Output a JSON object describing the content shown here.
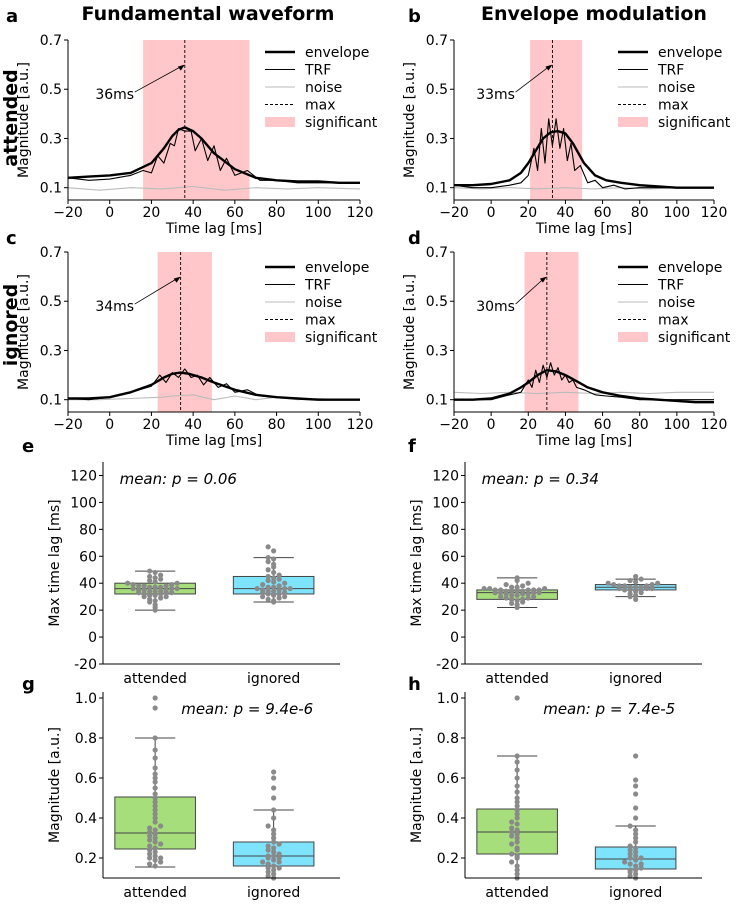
{
  "column_titles": [
    "Fundamental waveform",
    "Envelope modulation"
  ],
  "row_titles": [
    "attended",
    "ignored"
  ],
  "legend_labels": [
    "envelope",
    "TRF",
    "noise",
    "max",
    "significant"
  ],
  "colors": {
    "sig": "#ffc7c9",
    "green": "#a6de7b",
    "cyan": "#7ee3fc",
    "dot": "#8a8a8a",
    "noise": "#bbbbbb",
    "line": "#000000"
  },
  "chart_data": [
    {
      "panel": "a",
      "type": "line",
      "xlabel": "Time lag [ms]",
      "ylabel": "Magnitude [a.u.]",
      "xlim": [
        -20,
        120
      ],
      "ylim": [
        0.05,
        0.7
      ],
      "xticks": [
        -20,
        0,
        20,
        40,
        60,
        80,
        100,
        120
      ],
      "yticks": [
        0.1,
        0.3,
        0.5,
        0.7
      ],
      "peak_ms": 36,
      "peak_label": "36ms",
      "sig_range": [
        16,
        67
      ],
      "series": [
        {
          "name": "envelope",
          "x": [
            -20,
            -10,
            0,
            10,
            20,
            26,
            30,
            33,
            36,
            40,
            44,
            50,
            60,
            70,
            80,
            90,
            100,
            110,
            120
          ],
          "y": [
            0.14,
            0.145,
            0.15,
            0.16,
            0.2,
            0.26,
            0.31,
            0.335,
            0.345,
            0.33,
            0.3,
            0.24,
            0.175,
            0.14,
            0.13,
            0.125,
            0.125,
            0.12,
            0.12
          ]
        },
        {
          "name": "TRF",
          "x": [
            -20,
            -10,
            0,
            10,
            16,
            20,
            23,
            26,
            29,
            31,
            33,
            36,
            39,
            41,
            44,
            47,
            50,
            53,
            56,
            60,
            66,
            72,
            80,
            90,
            100,
            110,
            120
          ],
          "y": [
            0.14,
            0.13,
            0.135,
            0.15,
            0.17,
            0.16,
            0.23,
            0.2,
            0.28,
            0.27,
            0.34,
            0.33,
            0.33,
            0.25,
            0.3,
            0.21,
            0.27,
            0.17,
            0.22,
            0.15,
            0.17,
            0.13,
            0.13,
            0.12,
            0.12,
            0.12,
            0.12
          ]
        },
        {
          "name": "noise",
          "x": [
            -20,
            -5,
            10,
            25,
            40,
            55,
            70,
            85,
            100,
            120
          ],
          "y": [
            0.1,
            0.09,
            0.1,
            0.095,
            0.105,
            0.09,
            0.1,
            0.095,
            0.1,
            0.095
          ]
        }
      ]
    },
    {
      "panel": "b",
      "type": "line",
      "xlabel": "Time lag [ms]",
      "ylabel": "Magnitude [a.u.]",
      "xlim": [
        -20,
        120
      ],
      "ylim": [
        0.05,
        0.7
      ],
      "xticks": [
        -20,
        0,
        20,
        40,
        60,
        80,
        100,
        120
      ],
      "yticks": [
        0.1,
        0.3,
        0.5,
        0.7
      ],
      "peak_ms": 33,
      "peak_label": "33ms",
      "sig_range": [
        21,
        49
      ],
      "series": [
        {
          "name": "envelope",
          "x": [
            -20,
            -10,
            0,
            10,
            16,
            20,
            24,
            28,
            32,
            36,
            40,
            44,
            50,
            56,
            62,
            70,
            80,
            90,
            100,
            110,
            120
          ],
          "y": [
            0.11,
            0.11,
            0.115,
            0.13,
            0.16,
            0.2,
            0.25,
            0.3,
            0.325,
            0.33,
            0.32,
            0.28,
            0.2,
            0.15,
            0.13,
            0.12,
            0.11,
            0.105,
            0.1,
            0.1,
            0.1
          ]
        },
        {
          "name": "TRF",
          "x": [
            -20,
            -10,
            0,
            10,
            16,
            20,
            23,
            25,
            27,
            29,
            31,
            33,
            35,
            37,
            39,
            41,
            43,
            45,
            48,
            52,
            56,
            60,
            66,
            72,
            80,
            90,
            100,
            110,
            120
          ],
          "y": [
            0.11,
            0.1,
            0.1,
            0.11,
            0.12,
            0.15,
            0.26,
            0.17,
            0.34,
            0.2,
            0.38,
            0.27,
            0.38,
            0.26,
            0.34,
            0.21,
            0.28,
            0.17,
            0.19,
            0.12,
            0.13,
            0.1,
            0.11,
            0.095,
            0.1,
            0.1,
            0.1,
            0.1,
            0.1
          ]
        },
        {
          "name": "noise",
          "x": [
            -20,
            -5,
            10,
            25,
            40,
            55,
            70,
            85,
            100,
            120
          ],
          "y": [
            0.1,
            0.095,
            0.1,
            0.095,
            0.1,
            0.095,
            0.1,
            0.095,
            0.1,
            0.1
          ]
        }
      ]
    },
    {
      "panel": "c",
      "type": "line",
      "xlabel": "Time lag [ms]",
      "ylabel": "Magnitude [a.u.]",
      "xlim": [
        -20,
        120
      ],
      "ylim": [
        0.05,
        0.7
      ],
      "xticks": [
        -20,
        0,
        20,
        40,
        60,
        80,
        100,
        120
      ],
      "yticks": [
        0.1,
        0.3,
        0.5,
        0.7
      ],
      "peak_ms": 34,
      "peak_label": "34ms",
      "sig_range": [
        23,
        49
      ],
      "series": [
        {
          "name": "envelope",
          "x": [
            -20,
            -10,
            0,
            10,
            20,
            26,
            30,
            34,
            38,
            44,
            50,
            60,
            70,
            80,
            90,
            100,
            110,
            120
          ],
          "y": [
            0.105,
            0.105,
            0.11,
            0.13,
            0.16,
            0.19,
            0.205,
            0.21,
            0.205,
            0.19,
            0.17,
            0.14,
            0.12,
            0.11,
            0.105,
            0.1,
            0.1,
            0.1
          ]
        },
        {
          "name": "TRF",
          "x": [
            -20,
            -10,
            0,
            10,
            20,
            24,
            27,
            30,
            33,
            36,
            39,
            42,
            45,
            48,
            52,
            56,
            60,
            66,
            72,
            80,
            90,
            100,
            110,
            120
          ],
          "y": [
            0.105,
            0.1,
            0.11,
            0.13,
            0.155,
            0.2,
            0.17,
            0.21,
            0.19,
            0.225,
            0.19,
            0.2,
            0.16,
            0.19,
            0.15,
            0.165,
            0.13,
            0.14,
            0.115,
            0.11,
            0.105,
            0.1,
            0.1,
            0.1
          ]
        },
        {
          "name": "noise",
          "x": [
            -20,
            -5,
            10,
            25,
            30,
            40,
            50,
            60,
            70,
            80,
            90,
            100,
            110,
            120
          ],
          "y": [
            0.1,
            0.1,
            0.105,
            0.11,
            0.115,
            0.12,
            0.1,
            0.115,
            0.1,
            0.11,
            0.1,
            0.105,
            0.1,
            0.1
          ]
        }
      ]
    },
    {
      "panel": "d",
      "type": "line",
      "xlabel": "Time lag [ms]",
      "ylabel": "Magnitude [a.u.]",
      "xlim": [
        -20,
        120
      ],
      "ylim": [
        0.05,
        0.7
      ],
      "xticks": [
        -20,
        0,
        20,
        40,
        60,
        80,
        100,
        120
      ],
      "yticks": [
        0.1,
        0.3,
        0.5,
        0.7
      ],
      "peak_ms": 30,
      "peak_label": "30ms",
      "sig_range": [
        18,
        47
      ],
      "series": [
        {
          "name": "envelope",
          "x": [
            -20,
            -10,
            0,
            10,
            16,
            20,
            25,
            30,
            35,
            40,
            46,
            52,
            60,
            70,
            80,
            90,
            100,
            110,
            120
          ],
          "y": [
            0.1,
            0.1,
            0.105,
            0.125,
            0.15,
            0.17,
            0.2,
            0.22,
            0.215,
            0.2,
            0.175,
            0.15,
            0.13,
            0.115,
            0.105,
            0.1,
            0.095,
            0.09,
            0.09
          ]
        },
        {
          "name": "TRF",
          "x": [
            -20,
            -10,
            0,
            10,
            16,
            20,
            22,
            24,
            26,
            28,
            30,
            32,
            34,
            36,
            38,
            40,
            42,
            44,
            46,
            50,
            56,
            62,
            70,
            80,
            90,
            100,
            110,
            120
          ],
          "y": [
            0.1,
            0.1,
            0.1,
            0.12,
            0.13,
            0.18,
            0.15,
            0.22,
            0.17,
            0.24,
            0.19,
            0.25,
            0.2,
            0.23,
            0.18,
            0.2,
            0.17,
            0.18,
            0.15,
            0.14,
            0.12,
            0.115,
            0.11,
            0.1,
            0.1,
            0.1,
            0.1,
            0.1
          ]
        },
        {
          "name": "noise",
          "x": [
            -20,
            -5,
            10,
            25,
            40,
            55,
            70,
            85,
            100,
            120
          ],
          "y": [
            0.13,
            0.125,
            0.13,
            0.125,
            0.13,
            0.125,
            0.13,
            0.125,
            0.13,
            0.13
          ]
        }
      ]
    },
    {
      "panel": "e",
      "type": "box",
      "ylabel": "Max time lag [ms]",
      "categories": [
        "attended",
        "ignored"
      ],
      "ylim": [
        -20,
        130
      ],
      "yticks": [
        -20,
        0,
        20,
        40,
        60,
        80,
        100,
        120
      ],
      "annotation": "mean:   p = 0.06",
      "boxes": [
        {
          "q1": 32,
          "median": 36,
          "q3": 40,
          "whisker_low": 20,
          "whisker_high": 49,
          "points": [
            20,
            22,
            24,
            26,
            27,
            28,
            29,
            30,
            30,
            31,
            31,
            32,
            32,
            33,
            33,
            33,
            34,
            34,
            34,
            35,
            35,
            35,
            36,
            36,
            36,
            37,
            37,
            37,
            38,
            38,
            38,
            39,
            39,
            40,
            40,
            41,
            42,
            43,
            44,
            45,
            46,
            48,
            49
          ]
        },
        {
          "q1": 32,
          "median": 36,
          "q3": 45,
          "whisker_low": 26,
          "whisker_high": 59,
          "points": [
            26,
            27,
            28,
            29,
            30,
            30,
            31,
            32,
            32,
            33,
            33,
            34,
            34,
            35,
            35,
            36,
            36,
            36,
            37,
            37,
            38,
            39,
            40,
            41,
            42,
            43,
            44,
            45,
            46,
            48,
            50,
            52,
            54,
            56,
            58,
            59,
            64,
            67
          ]
        }
      ]
    },
    {
      "panel": "f",
      "type": "box",
      "ylabel": "Max time lag [ms]",
      "categories": [
        "attended",
        "ignored"
      ],
      "ylim": [
        -20,
        130
      ],
      "yticks": [
        -20,
        0,
        20,
        40,
        60,
        80,
        100,
        120
      ],
      "annotation": "mean:   p = 0.34",
      "boxes": [
        {
          "q1": 28,
          "median": 33,
          "q3": 35,
          "whisker_low": 22,
          "whisker_high": 44,
          "points": [
            22,
            24,
            25,
            26,
            27,
            28,
            28,
            29,
            29,
            30,
            30,
            31,
            31,
            32,
            32,
            32,
            33,
            33,
            33,
            33,
            34,
            34,
            34,
            34,
            35,
            35,
            35,
            35,
            35,
            36,
            36,
            36,
            37,
            37,
            38,
            39,
            40,
            42,
            44
          ]
        },
        {
          "q1": 35,
          "median": 37,
          "q3": 39,
          "whisker_low": 30,
          "whisker_high": 43,
          "points": [
            28,
            30,
            31,
            32,
            33,
            34,
            35,
            35,
            35,
            36,
            36,
            36,
            37,
            37,
            37,
            38,
            38,
            38,
            39,
            39,
            40,
            40,
            41,
            42,
            43,
            45
          ]
        }
      ]
    },
    {
      "panel": "g",
      "type": "box",
      "ylabel": "Magnitude [a.u.]",
      "categories": [
        "attended",
        "ignored"
      ],
      "ylim": [
        0.1,
        1.03
      ],
      "yticks": [
        0.2,
        0.4,
        0.6,
        0.8,
        1.0
      ],
      "annotation": "mean:   p = 9.4e-6",
      "boxes": [
        {
          "q1": 0.245,
          "median": 0.325,
          "q3": 0.505,
          "whisker_low": 0.155,
          "whisker_high": 0.8,
          "points": [
            0.16,
            0.17,
            0.18,
            0.19,
            0.2,
            0.2,
            0.21,
            0.22,
            0.23,
            0.24,
            0.25,
            0.26,
            0.27,
            0.28,
            0.29,
            0.3,
            0.31,
            0.32,
            0.33,
            0.34,
            0.35,
            0.36,
            0.38,
            0.4,
            0.42,
            0.44,
            0.46,
            0.48,
            0.5,
            0.52,
            0.55,
            0.58,
            0.6,
            0.62,
            0.65,
            0.7,
            0.74,
            0.8,
            0.95,
            1.0
          ]
        },
        {
          "q1": 0.16,
          "median": 0.21,
          "q3": 0.28,
          "whisker_low": 0.1,
          "whisker_high": 0.44,
          "points": [
            0.1,
            0.11,
            0.12,
            0.13,
            0.14,
            0.15,
            0.15,
            0.16,
            0.17,
            0.18,
            0.18,
            0.19,
            0.2,
            0.2,
            0.21,
            0.21,
            0.22,
            0.23,
            0.24,
            0.25,
            0.26,
            0.27,
            0.28,
            0.3,
            0.32,
            0.34,
            0.36,
            0.4,
            0.44,
            0.5,
            0.55,
            0.6,
            0.63
          ]
        }
      ]
    },
    {
      "panel": "h",
      "type": "box",
      "ylabel": "Magnitude [a.u.]",
      "categories": [
        "attended",
        "ignored"
      ],
      "ylim": [
        0.1,
        1.03
      ],
      "yticks": [
        0.2,
        0.4,
        0.6,
        0.8,
        1.0
      ],
      "annotation": "mean:   p = 7.4e-5",
      "boxes": [
        {
          "q1": 0.22,
          "median": 0.33,
          "q3": 0.445,
          "whisker_low": 0.1,
          "whisker_high": 0.71,
          "points": [
            0.1,
            0.12,
            0.14,
            0.16,
            0.18,
            0.2,
            0.21,
            0.22,
            0.24,
            0.25,
            0.27,
            0.28,
            0.3,
            0.31,
            0.32,
            0.33,
            0.34,
            0.35,
            0.37,
            0.38,
            0.4,
            0.42,
            0.44,
            0.46,
            0.48,
            0.5,
            0.53,
            0.56,
            0.6,
            0.64,
            0.68,
            0.71,
            1.0
          ]
        },
        {
          "q1": 0.145,
          "median": 0.195,
          "q3": 0.255,
          "whisker_low": 0.1,
          "whisker_high": 0.36,
          "points": [
            0.1,
            0.11,
            0.12,
            0.13,
            0.14,
            0.14,
            0.15,
            0.16,
            0.17,
            0.17,
            0.18,
            0.19,
            0.2,
            0.2,
            0.21,
            0.22,
            0.23,
            0.24,
            0.25,
            0.26,
            0.28,
            0.3,
            0.32,
            0.34,
            0.36,
            0.4,
            0.45,
            0.52,
            0.56,
            0.59,
            0.71
          ]
        }
      ]
    }
  ]
}
